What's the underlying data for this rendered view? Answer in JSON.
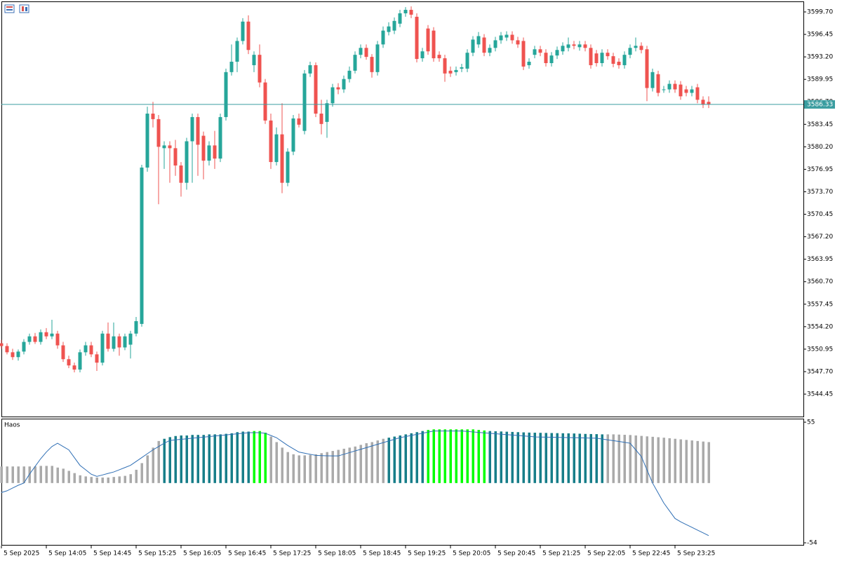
{
  "chart_data": [
    {
      "type": "candlestick",
      "x_labels": [
        "5 Sep 2025",
        "5 Sep 14:05",
        "5 Sep 14:45",
        "5 Sep 15:25",
        "5 Sep 16:05",
        "5 Sep 16:45",
        "5 Sep 17:25",
        "5 Sep 18:05",
        "5 Sep 18:45",
        "5 Sep 19:25",
        "5 Sep 20:05",
        "5 Sep 20:45",
        "5 Sep 21:25",
        "5 Sep 22:05",
        "5 Sep 22:45",
        "5 Sep 23:25"
      ],
      "ylim": [
        3541.21,
        3601.22
      ],
      "yticks": [
        {
          "value": 3599.7,
          "label": "3599.70"
        },
        3596.45,
        {
          "value": 3593.2,
          "label": "3593.20"
        },
        3589.95,
        {
          "value": 3586.7,
          "label": "3586.70"
        },
        3583.45,
        {
          "value": 3580.2,
          "label": "3580.20"
        },
        3576.95,
        {
          "value": 3573.7,
          "label": "3573.70"
        },
        3570.45,
        {
          "value": 3567.2,
          "label": "3567.20"
        },
        3563.95,
        {
          "value": 3560.7,
          "label": "3560.70"
        },
        3557.45,
        {
          "value": 3554.2,
          "label": "3554.20"
        },
        3550.95,
        {
          "value": 3547.7,
          "label": "3547.70"
        },
        3544.45
      ],
      "last_price": 3586.33,
      "up_color": "#26a69a",
      "down_color": "#ef5350",
      "last_price_color": "#3a9da0",
      "candles": [
        [
          3551.8,
          3552.3,
          3551.0,
          3551.4
        ],
        [
          3551.4,
          3551.8,
          3550.2,
          3550.5
        ],
        [
          3550.5,
          3551.0,
          3549.4,
          3549.8
        ],
        [
          3549.8,
          3550.9,
          3549.3,
          3550.6
        ],
        [
          3550.6,
          3552.4,
          3550.2,
          3552.0
        ],
        [
          3552.0,
          3553.2,
          3551.6,
          3552.8
        ],
        [
          3552.8,
          3553.3,
          3551.7,
          3552.0
        ],
        [
          3552.0,
          3553.8,
          3551.6,
          3553.4
        ],
        [
          3553.4,
          3554.0,
          3552.4,
          3552.8
        ],
        [
          3552.8,
          3555.2,
          3552.4,
          3553.2
        ],
        [
          3553.2,
          3553.6,
          3551.0,
          3551.5
        ],
        [
          3551.5,
          3552.0,
          3549.1,
          3549.5
        ],
        [
          3549.5,
          3550.0,
          3548.2,
          3548.6
        ],
        [
          3548.6,
          3549.0,
          3547.6,
          3548.0
        ],
        [
          3548.0,
          3550.9,
          3547.6,
          3550.5
        ],
        [
          3550.5,
          3552.0,
          3550.0,
          3551.5
        ],
        [
          3551.5,
          3552.0,
          3549.8,
          3550.2
        ],
        [
          3550.2,
          3550.6,
          3547.8,
          3549.0
        ],
        [
          3549.0,
          3553.6,
          3548.6,
          3553.2
        ],
        [
          3553.2,
          3554.8,
          3550.6,
          3551.0
        ],
        [
          3551.0,
          3554.8,
          3550.6,
          3552.8
        ],
        [
          3552.8,
          3553.2,
          3550.0,
          3551.2
        ],
        [
          3551.2,
          3553.2,
          3550.8,
          3552.8
        ],
        [
          3551.6,
          3553.6,
          3549.6,
          3553.2
        ],
        [
          3553.2,
          3555.6,
          3552.8,
          3555.0
        ],
        [
          3554.6,
          3577.6,
          3554.2,
          3577.2
        ],
        [
          3577.2,
          3586.0,
          3576.6,
          3585.0
        ],
        [
          3585.0,
          3586.7,
          3583.0,
          3584.2
        ],
        [
          3584.2,
          3584.8,
          3571.9,
          3580.2
        ],
        [
          3580.0,
          3581.0,
          3577.0,
          3580.4
        ],
        [
          3580.4,
          3581.0,
          3575.0,
          3580.0
        ],
        [
          3580.0,
          3581.2,
          3576.0,
          3577.5
        ],
        [
          3577.5,
          3578.0,
          3573.0,
          3575.0
        ],
        [
          3575.0,
          3581.5,
          3574.0,
          3581.0
        ],
        [
          3581.0,
          3585.0,
          3575.0,
          3584.5
        ],
        [
          3584.5,
          3585.0,
          3576.0,
          3580.5
        ],
        [
          3581.8,
          3582.4,
          3575.5,
          3578.2
        ],
        [
          3578.2,
          3581.0,
          3577.5,
          3580.4
        ],
        [
          3580.4,
          3582.5,
          3577.0,
          3578.5
        ],
        [
          3578.5,
          3585.0,
          3578.0,
          3584.5
        ],
        [
          3584.5,
          3591.5,
          3584.0,
          3591.0
        ],
        [
          3591.0,
          3595.0,
          3590.5,
          3592.5
        ],
        [
          3592.5,
          3596.0,
          3591.0,
          3595.5
        ],
        [
          3595.5,
          3598.8,
          3595.0,
          3598.3
        ],
        [
          3598.3,
          3599.2,
          3593.6,
          3594.2
        ],
        [
          3592.0,
          3594.0,
          3591.0,
          3593.5
        ],
        [
          3593.5,
          3595.0,
          3588.8,
          3589.5
        ],
        [
          3589.5,
          3590.0,
          3583.5,
          3584.0
        ],
        [
          3584.0,
          3585.0,
          3577.0,
          3578.0
        ],
        [
          3578.0,
          3583.0,
          3577.5,
          3582.0
        ],
        [
          3582.0,
          3586.5,
          3573.5,
          3575.0
        ],
        [
          3575.0,
          3580.0,
          3574.5,
          3579.5
        ],
        [
          3579.5,
          3584.8,
          3579.0,
          3584.3
        ],
        [
          3584.3,
          3585.0,
          3583.0,
          3583.4
        ],
        [
          3582.5,
          3591.3,
          3582.0,
          3590.8
        ],
        [
          3590.8,
          3592.5,
          3590.3,
          3592.0
        ],
        [
          3592.0,
          3592.4,
          3584.5,
          3585.0
        ],
        [
          3585.0,
          3587.0,
          3582.0,
          3583.5
        ],
        [
          3583.8,
          3587.0,
          3581.5,
          3586.5
        ],
        [
          3586.5,
          3589.3,
          3586.0,
          3588.8
        ],
        [
          3588.8,
          3589.4,
          3587.8,
          3588.5
        ],
        [
          3588.5,
          3590.5,
          3588.0,
          3590.0
        ],
        [
          3590.0,
          3591.8,
          3589.5,
          3591.2
        ],
        [
          3591.2,
          3594.0,
          3590.8,
          3593.5
        ],
        [
          3593.5,
          3595.0,
          3593.0,
          3594.5
        ],
        [
          3594.5,
          3595.0,
          3592.8,
          3593.2
        ],
        [
          3593.2,
          3593.6,
          3590.2,
          3591.0
        ],
        [
          3591.0,
          3595.5,
          3590.5,
          3595.0
        ],
        [
          3595.0,
          3597.6,
          3594.5,
          3597.0
        ],
        [
          3596.8,
          3598.2,
          3596.3,
          3597.6
        ],
        [
          3597.0,
          3598.9,
          3596.5,
          3598.4
        ],
        [
          3598.0,
          3600.0,
          3597.5,
          3599.5
        ],
        [
          3599.5,
          3600.4,
          3599.0,
          3600.0
        ],
        [
          3600.0,
          3600.5,
          3598.8,
          3599.3
        ],
        [
          3599.0,
          3599.5,
          3592.4,
          3592.9
        ],
        [
          3593.0,
          3594.5,
          3592.5,
          3594.0
        ],
        [
          3597.3,
          3597.8,
          3593.5,
          3594.0
        ],
        [
          3597.0,
          3597.5,
          3592.5,
          3593.0
        ],
        [
          3593.5,
          3594.0,
          3592.5,
          3593.0
        ],
        [
          3593.0,
          3593.5,
          3589.6,
          3590.8
        ],
        [
          3591.2,
          3591.8,
          3590.3,
          3590.8
        ],
        [
          3591.0,
          3591.8,
          3590.5,
          3591.3
        ],
        [
          3591.5,
          3592.2,
          3591.0,
          3591.7
        ],
        [
          3591.5,
          3594.3,
          3591.0,
          3593.8
        ],
        [
          3593.8,
          3596.2,
          3593.3,
          3595.7
        ],
        [
          3595.0,
          3596.8,
          3594.5,
          3596.2
        ],
        [
          3596.0,
          3596.5,
          3593.3,
          3593.8
        ],
        [
          3593.8,
          3595.0,
          3593.3,
          3594.5
        ],
        [
          3594.5,
          3596.1,
          3594.0,
          3595.6
        ],
        [
          3595.6,
          3596.8,
          3595.1,
          3596.3
        ],
        [
          3596.0,
          3596.9,
          3595.5,
          3596.4
        ],
        [
          3596.4,
          3596.9,
          3595.1,
          3595.6
        ],
        [
          3595.6,
          3596.1,
          3594.5,
          3595.0
        ],
        [
          3595.5,
          3596.0,
          3591.3,
          3591.8
        ],
        [
          3592.0,
          3593.0,
          3591.5,
          3592.5
        ],
        [
          3593.5,
          3594.8,
          3593.0,
          3594.3
        ],
        [
          3594.3,
          3594.8,
          3593.3,
          3593.8
        ],
        [
          3593.8,
          3594.3,
          3591.8,
          3592.3
        ],
        [
          3592.3,
          3593.9,
          3591.8,
          3593.4
        ],
        [
          3593.4,
          3594.7,
          3592.9,
          3594.2
        ],
        [
          3594.0,
          3595.3,
          3593.5,
          3594.8
        ],
        [
          3594.5,
          3596.0,
          3594.0,
          3595.0
        ],
        [
          3595.0,
          3595.5,
          3594.3,
          3594.8
        ],
        [
          3594.6,
          3595.5,
          3594.1,
          3595.0
        ],
        [
          3595.0,
          3595.5,
          3594.0,
          3594.5
        ],
        [
          3594.5,
          3595.0,
          3591.5,
          3592.0
        ],
        [
          3593.7,
          3594.2,
          3591.8,
          3592.3
        ],
        [
          3592.3,
          3594.3,
          3591.8,
          3593.8
        ],
        [
          3593.8,
          3594.3,
          3592.8,
          3593.3
        ],
        [
          3593.3,
          3593.8,
          3591.7,
          3592.2
        ],
        [
          3592.5,
          3593.0,
          3591.5,
          3592.0
        ],
        [
          3592.0,
          3594.0,
          3591.5,
          3593.5
        ],
        [
          3593.5,
          3595.0,
          3593.0,
          3594.5
        ],
        [
          3594.5,
          3596.0,
          3594.0,
          3594.8
        ],
        [
          3594.8,
          3595.3,
          3593.7,
          3594.2
        ],
        [
          3594.3,
          3594.8,
          3586.8,
          3588.7
        ],
        [
          3588.7,
          3591.5,
          3588.2,
          3591.0
        ],
        [
          3590.7,
          3591.2,
          3587.5,
          3588.0
        ],
        [
          3588.5,
          3589.0,
          3588.0,
          3588.5
        ],
        [
          3588.5,
          3589.8,
          3588.0,
          3589.3
        ],
        [
          3589.3,
          3589.8,
          3588.0,
          3588.5
        ],
        [
          3589.2,
          3589.7,
          3587.0,
          3587.5
        ],
        [
          3588.5,
          3589.0,
          3587.5,
          3588.0
        ],
        [
          3588.0,
          3589.0,
          3587.5,
          3588.5
        ],
        [
          3588.8,
          3589.3,
          3586.5,
          3587.0
        ],
        [
          3587.0,
          3587.5,
          3585.8,
          3586.3
        ],
        [
          3586.7,
          3587.5,
          3585.8,
          3586.33
        ]
      ]
    },
    {
      "type": "bar",
      "title": "Haos",
      "ylim": [
        -56.5,
        58.2
      ],
      "yticks": [
        55,
        -54
      ],
      "values": [
        15,
        15,
        15,
        15,
        15,
        15,
        15,
        15.5,
        15.5,
        15.5,
        14,
        13,
        11,
        9,
        7,
        6,
        5.5,
        5,
        5,
        5,
        5.5,
        6,
        6.5,
        8,
        12,
        18,
        25,
        32,
        38,
        40,
        41.5,
        42.5,
        43,
        43,
        43.5,
        43.5,
        43.5,
        44,
        44,
        44,
        44.5,
        45,
        46,
        46.5,
        46.5,
        47,
        47,
        45.5,
        42,
        37,
        32,
        28,
        26,
        25,
        25,
        25.5,
        26,
        27,
        28,
        29,
        30,
        31,
        32,
        33,
        34.5,
        36,
        37,
        38.5,
        40,
        41,
        42,
        43,
        44,
        45,
        46,
        47,
        48,
        48.5,
        48.5,
        48.5,
        48.5,
        48.5,
        48.5,
        48.5,
        48.5,
        48,
        47.5,
        47,
        46.8,
        46.6,
        46.4,
        46.2,
        46,
        45.8,
        45.6,
        45.5,
        45.4,
        45.3,
        45.2,
        45.1,
        45,
        44.9,
        44.8,
        44.6,
        44.4,
        44.3,
        44.2,
        44,
        44,
        44,
        43.8,
        43.6,
        43.4,
        43,
        42.6,
        42.2,
        41.8,
        41.4,
        41,
        40.5,
        40,
        39.5,
        39,
        38.5,
        38,
        37.5,
        37
      ],
      "colors": [
        "#aaa",
        "#aaa",
        "#aaa",
        "#aaa",
        "#aaa",
        "#aaa",
        "#aaa",
        "#aaa",
        "#aaa",
        "#aaa",
        "#aaa",
        "#aaa",
        "#aaa",
        "#aaa",
        "#aaa",
        "#aaa",
        "#aaa",
        "#aaa",
        "#aaa",
        "#aaa",
        "#aaa",
        "#aaa",
        "#aaa",
        "#aaa",
        "#aaa",
        "#aaa",
        "#aaa",
        "#aaa",
        "#aaa",
        "#177e89",
        "#177e89",
        "#177e89",
        "#177e89",
        "#177e89",
        "#177e89",
        "#177e89",
        "#177e89",
        "#177e89",
        "#177e89",
        "#177e89",
        "#177e89",
        "#177e89",
        "#177e89",
        "#177e89",
        "#177e89",
        "#00ff00",
        "#00ff00",
        "#00ff00",
        "#aaa",
        "#aaa",
        "#aaa",
        "#aaa",
        "#aaa",
        "#aaa",
        "#aaa",
        "#aaa",
        "#aaa",
        "#aaa",
        "#aaa",
        "#aaa",
        "#aaa",
        "#aaa",
        "#aaa",
        "#aaa",
        "#aaa",
        "#aaa",
        "#aaa",
        "#aaa",
        "#aaa",
        "#177e89",
        "#177e89",
        "#177e89",
        "#177e89",
        "#177e89",
        "#177e89",
        "#177e89",
        "#00ff00",
        "#00ff00",
        "#00ff00",
        "#00ff00",
        "#00ff00",
        "#00ff00",
        "#00ff00",
        "#00ff00",
        "#00ff00",
        "#00ff00",
        "#00ff00",
        "#177e89",
        "#177e89",
        "#177e89",
        "#177e89",
        "#177e89",
        "#177e89",
        "#177e89",
        "#177e89",
        "#177e89",
        "#177e89",
        "#177e89",
        "#177e89",
        "#177e89",
        "#177e89",
        "#177e89",
        "#177e89",
        "#177e89",
        "#177e89",
        "#177e89",
        "#177e89",
        "#177e89",
        "#aaa",
        "#aaa",
        "#aaa",
        "#aaa",
        "#aaa",
        "#aaa",
        "#aaa",
        "#aaa",
        "#aaa",
        "#aaa",
        "#aaa",
        "#aaa",
        "#aaa",
        "#aaa",
        "#aaa",
        "#aaa",
        "#aaa",
        "#aaa",
        "#aaa"
      ],
      "line": {
        "color": "#2f6fb5",
        "values": [
          -8.6,
          -7,
          -4.5,
          -2,
          0,
          8,
          15,
          22,
          28,
          33,
          36,
          33,
          30,
          23,
          16,
          12,
          8,
          6,
          7.3,
          8.7,
          10,
          12,
          14,
          16,
          19.5,
          23,
          26.5,
          30,
          33,
          36,
          38.5,
          39,
          39.5,
          40,
          40.5,
          41,
          41.5,
          42,
          42.5,
          43,
          43.5,
          44,
          44.5,
          45,
          45.5,
          45.5,
          45.5,
          45,
          43,
          41,
          37.5,
          34,
          31,
          28,
          27,
          26,
          25,
          24.8,
          24.6,
          24.5,
          24.5,
          26,
          27.5,
          29,
          30.5,
          32,
          33.5,
          35,
          36.5,
          38,
          39.5,
          41,
          42,
          43,
          44,
          45,
          46,
          47,
          47,
          47,
          47,
          47,
          47,
          46.6,
          46.2,
          45.8,
          45.4,
          45,
          44.6,
          44.2,
          43.8,
          43.4,
          43,
          42.6,
          42.2,
          41.7,
          41.6,
          41.5,
          41.4,
          41.3,
          41.2,
          41.1,
          41,
          40.9,
          40.8,
          40.6,
          40.5,
          39.8,
          39,
          38.3,
          37.6,
          36.8,
          36,
          30,
          24,
          12,
          0,
          -9,
          -18,
          -25,
          -32,
          -35,
          -37.5,
          -40,
          -42.5,
          -45,
          -47.5
        ]
      }
    }
  ]
}
